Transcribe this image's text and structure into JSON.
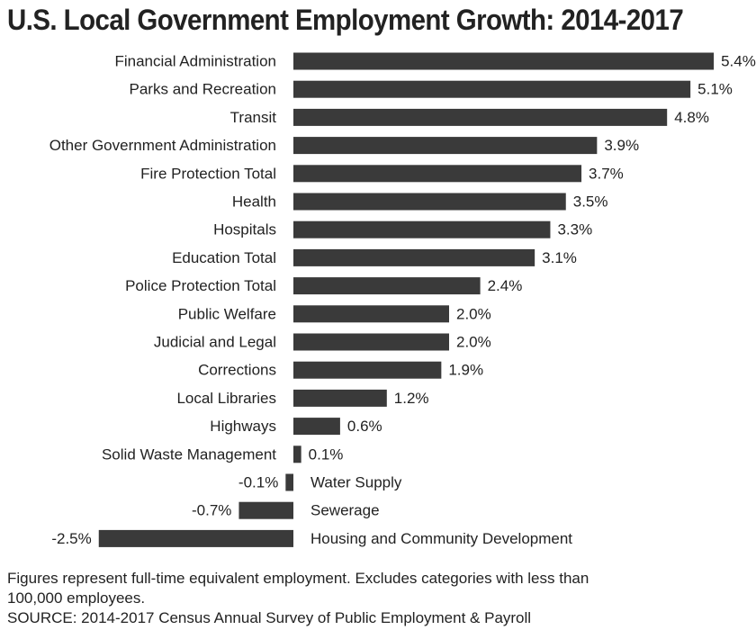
{
  "chart_data": {
    "type": "bar",
    "orientation": "horizontal",
    "title": "U.S. Local Government Employment Growth: 2014-2017",
    "xlabel": "",
    "ylabel": "",
    "unit": "%",
    "xlim": [
      -2.5,
      5.4
    ],
    "grid": false,
    "legend": "none",
    "bar_color": "#3a3a3a",
    "categories": [
      "Financial Administration",
      "Parks and Recreation",
      "Transit",
      "Other Government Administration",
      "Fire Protection Total",
      "Health",
      "Hospitals",
      "Education Total",
      "Police Protection Total",
      "Public Welfare",
      "Judicial and Legal",
      "Corrections",
      "Local Libraries",
      "Highways",
      "Solid Waste Management",
      "Water Supply",
      "Sewerage",
      "Housing and Community Development"
    ],
    "values": [
      5.4,
      5.1,
      4.8,
      3.9,
      3.7,
      3.5,
      3.3,
      3.1,
      2.4,
      2.0,
      2.0,
      1.9,
      1.2,
      0.6,
      0.1,
      -0.1,
      -0.7,
      -2.5
    ],
    "data_labels": [
      "5.4%",
      "5.1%",
      "4.8%",
      "3.9%",
      "3.7%",
      "3.5%",
      "3.3%",
      "3.1%",
      "2.4%",
      "2.0%",
      "2.0%",
      "1.9%",
      "1.2%",
      "0.6%",
      "0.1%",
      "-0.1%",
      "-0.7%",
      "-2.5%"
    ]
  },
  "notes": {
    "line1": "Figures represent full-time equivalent employment. Excludes categories with less than",
    "line2": "100,000 employees.",
    "source": "SOURCE: 2014-2017 Census Annual Survey of Public Employment & Payroll"
  }
}
